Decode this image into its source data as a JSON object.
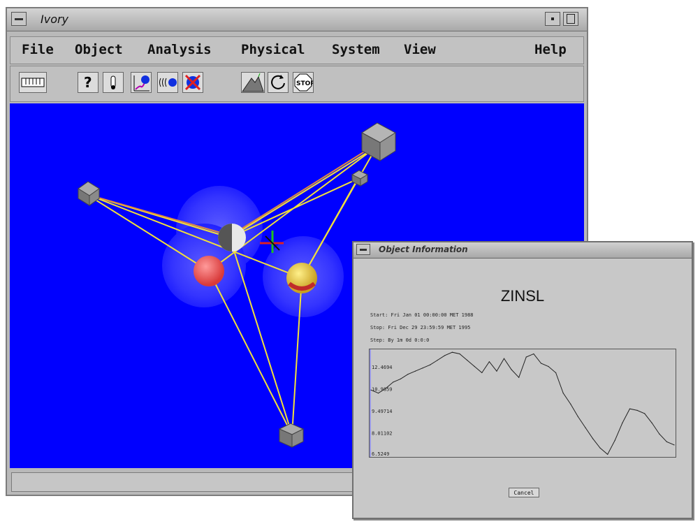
{
  "main_window": {
    "title": "Ivory",
    "menu": [
      "File",
      "Object",
      "Analysis",
      "Physical",
      "System",
      "View",
      "Help"
    ]
  },
  "toolbar_icons": [
    "ruler-icon",
    "question-icon",
    "thermometer-icon",
    "orbit-icon",
    "radiate-icon",
    "delete-object-icon",
    "terrain-icon",
    "rotate-icon",
    "stop-icon"
  ],
  "toolbar": {
    "stop_label": "STOP"
  },
  "info_window": {
    "title": "Object Information",
    "object_name": "ZINSL",
    "start_line": "Start: Fri Jan 01 00:00:00 MET 1988",
    "stop_line": "Stop: Fri Dec 29 23:59:59 MET 1995",
    "step_line": "Step: By 1m 0d 0:0:0",
    "cancel_label": "Cancel"
  },
  "chart_data": {
    "type": "line",
    "title": "",
    "xlabel": "",
    "ylabel": "",
    "y_tick_labels": [
      "12.4694",
      "10.9859",
      "9.49714",
      "8.01102",
      "6.5249"
    ],
    "ylim": [
      6.5249,
      13.2
    ],
    "series": [
      {
        "values": [
          10.7,
          10.5,
          10.8,
          11.2,
          11.4,
          11.7,
          11.9,
          12.1,
          12.3,
          12.6,
          12.9,
          13.1,
          13.0,
          12.6,
          12.2,
          11.8,
          12.5,
          11.9,
          12.7,
          12.0,
          11.5,
          12.8,
          13.0,
          12.4,
          12.2,
          11.8,
          10.5,
          9.8,
          9.0,
          8.3,
          7.6,
          7.0,
          6.6,
          7.5,
          8.6,
          9.5,
          9.4,
          9.2,
          8.6,
          7.9,
          7.4,
          7.2
        ]
      }
    ]
  }
}
